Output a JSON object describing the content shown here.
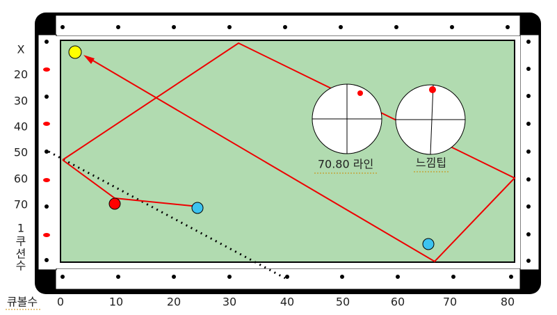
{
  "left_labels": [
    "X",
    "20",
    "30",
    "40",
    "50",
    "60",
    "70",
    "1",
    "쿠",
    "션",
    "수"
  ],
  "bottom_labels": [
    "큐볼수",
    "0",
    "10",
    "20",
    "30",
    "40",
    "50",
    "60",
    "70",
    "80"
  ],
  "captions": [
    "70.80 라인",
    "느낌팁"
  ]
}
